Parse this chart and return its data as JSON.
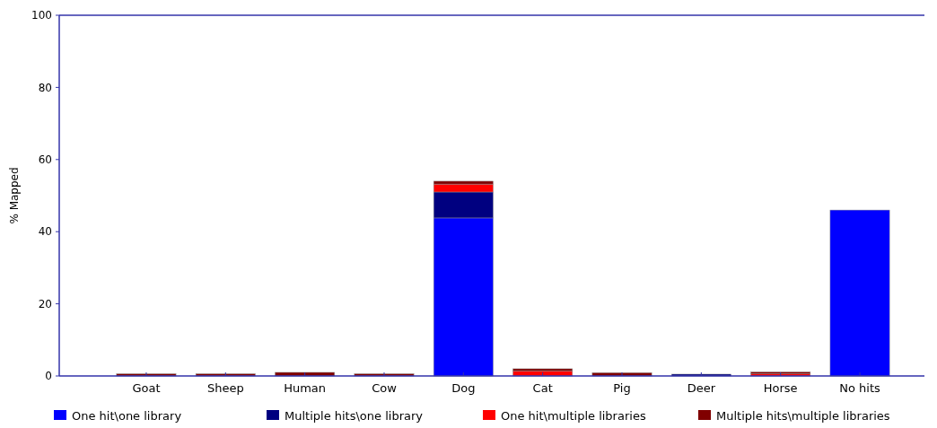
{
  "chart_data": {
    "type": "bar",
    "stacked": true,
    "ylabel": "% Mapped",
    "categories": [
      "Goat",
      "Sheep",
      "Human",
      "Cow",
      "Dog",
      "Cat",
      "Pig",
      "Deer",
      "Horse",
      "No hits"
    ],
    "series": [
      {
        "name": "One hit\\one library",
        "color": "#0000ff",
        "values": [
          0,
          0,
          0,
          0,
          43.8,
          0,
          0,
          0,
          0,
          46
        ]
      },
      {
        "name": "Multiple hits\\one library",
        "color": "#000080",
        "values": [
          0,
          0,
          0,
          0,
          7.2,
          0,
          0,
          0.5,
          0,
          0
        ]
      },
      {
        "name": "One hit\\multiple libraries",
        "color": "#ff0000",
        "values": [
          0,
          0,
          null,
          0,
          2.2,
          1.4,
          null,
          0,
          0.6,
          0
        ]
      },
      {
        "name": "Multiple hits\\multiple libraries",
        "color": "#800000",
        "values": [
          0.6,
          0.6,
          1,
          0.6,
          0.8,
          0.6,
          0.9,
          0,
          0.5,
          0
        ]
      }
    ],
    "ylim": [
      0,
      100
    ],
    "yticks": [
      0,
      20,
      40,
      60,
      80,
      100
    ],
    "legend": "bottom"
  }
}
